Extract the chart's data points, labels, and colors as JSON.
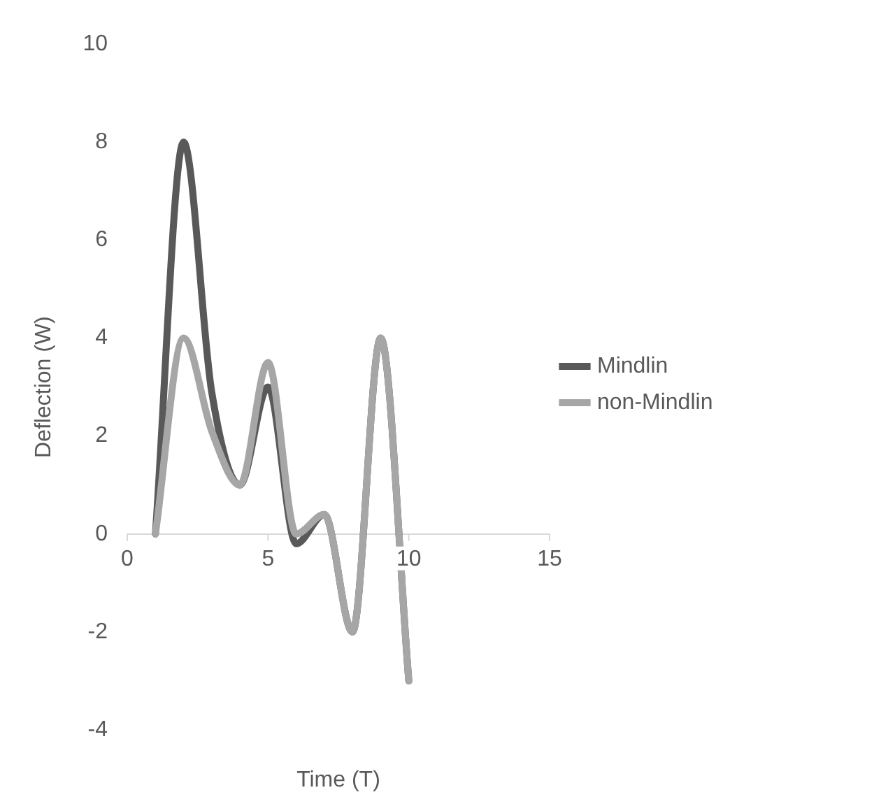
{
  "chart_data": {
    "type": "line",
    "xlabel": "Time (T)",
    "ylabel": "Deflection (W)",
    "x": [
      1,
      2,
      3,
      4,
      5,
      6,
      7,
      8,
      9,
      10
    ],
    "series": [
      {
        "name": "Mindlin",
        "color": "#595959",
        "values": [
          0,
          8,
          2.9,
          1,
          3,
          -0.2,
          0.4,
          -2,
          4,
          -3
        ]
      },
      {
        "name": "non-Mindlin",
        "color": "#a6a6a6",
        "values": [
          0,
          4,
          2.1,
          1,
          3.5,
          0,
          0.4,
          -2,
          4,
          -3
        ]
      }
    ],
    "xlim": [
      0,
      15
    ],
    "xticks": [
      0,
      5,
      10,
      15
    ],
    "ylim": [
      -4,
      10
    ],
    "yticks": [
      -4,
      -2,
      0,
      2,
      4,
      6,
      8,
      10
    ],
    "grid": false,
    "legend": "right",
    "marker": "none",
    "line_style": "solid"
  }
}
